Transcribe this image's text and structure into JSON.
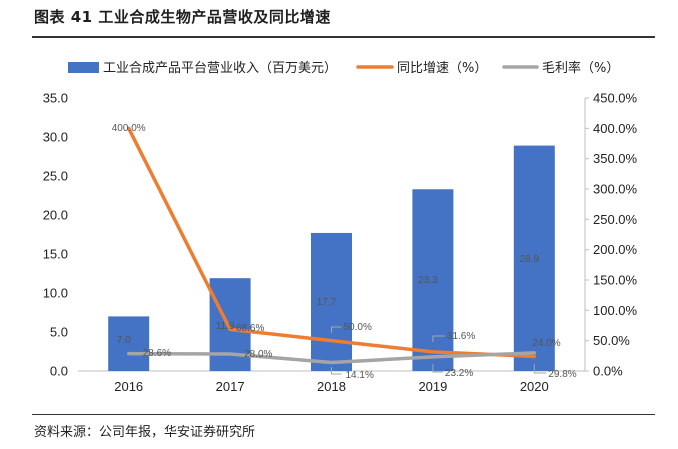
{
  "figure": {
    "title": "图表 41 工业合成生物产品营收及同比增速",
    "source": "资料来源：公司年报，华安证券研究所"
  },
  "chart_data": {
    "type": "bar",
    "categories": [
      "2016",
      "2017",
      "2018",
      "2019",
      "2020"
    ],
    "series": [
      {
        "name": "工业合成产品平台营业收入（百万美元）",
        "type": "bar",
        "axis": "left",
        "values": [
          7.0,
          11.9,
          17.7,
          23.3,
          28.9
        ],
        "labels": [
          "7.0",
          "11.9",
          "17.7",
          "23.3",
          "28.9"
        ],
        "color": "#4472C4"
      },
      {
        "name": "同比增速（%）",
        "type": "line",
        "axis": "right",
        "values": [
          400.0,
          68.6,
          50.0,
          31.6,
          24.0
        ],
        "labels": [
          "400.0%",
          "68.6%",
          "50.0%",
          "31.6%",
          "24.0%"
        ],
        "color": "#ED7D31"
      },
      {
        "name": "毛利率（%）",
        "type": "line",
        "axis": "right",
        "values": [
          28.6,
          28.0,
          14.1,
          23.2,
          29.8
        ],
        "labels": [
          "28.6%",
          "28.0%",
          "14.1%",
          "23.2%",
          "29.8%"
        ],
        "color": "#A5A5A5"
      }
    ],
    "y_left": {
      "min": 0,
      "max": 35,
      "step": 5,
      "ticks": [
        "0.0",
        "5.0",
        "10.0",
        "15.0",
        "20.0",
        "25.0",
        "30.0",
        "35.0"
      ]
    },
    "y_right": {
      "min": 0,
      "max": 450,
      "step": 50,
      "ticks": [
        "0.0%",
        "50.0%",
        "100.0%",
        "150.0%",
        "200.0%",
        "250.0%",
        "300.0%",
        "350.0%",
        "400.0%",
        "450.0%"
      ]
    },
    "legend_position": "top",
    "grid": false
  }
}
